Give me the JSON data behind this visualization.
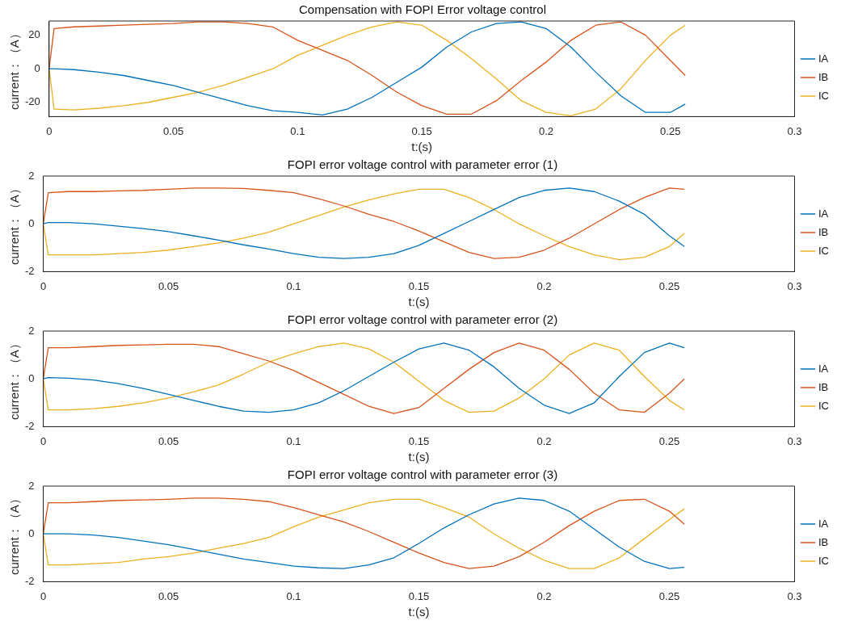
{
  "chart_data": [
    {
      "type": "line",
      "title": "Compensation with FOPI Error voltage control",
      "xlabel": "t:(s)",
      "ylabel": "current：（A）",
      "xlim": [
        0,
        0.3
      ],
      "xticks": [
        0,
        0.05,
        0.1,
        0.15,
        0.2,
        0.25,
        0.3
      ],
      "ylim": [
        -28.5,
        28.5
      ],
      "yticks": [
        -20,
        0,
        20
      ],
      "legend": "right",
      "grid": false,
      "marker": "none",
      "x": [
        0,
        0.002,
        0.01,
        0.02,
        0.03,
        0.04,
        0.05,
        0.06,
        0.07,
        0.08,
        0.09,
        0.1,
        0.11,
        0.12,
        0.13,
        0.14,
        0.15,
        0.16,
        0.17,
        0.18,
        0.19,
        0.2,
        0.21,
        0.22,
        0.23,
        0.24,
        0.25,
        0.256
      ],
      "series": [
        {
          "name": "IA",
          "color": "#0072bd",
          "values": [
            0,
            0,
            -0.5,
            -2,
            -4,
            -7,
            -10,
            -14,
            -18,
            -22,
            -25,
            -26,
            -27.5,
            -24,
            -17,
            -8,
            1,
            13,
            22,
            27,
            28,
            24,
            13,
            -2,
            -16,
            -26,
            -26,
            -21
          ]
        },
        {
          "name": "IB",
          "color": "#d95319",
          "values": [
            0,
            24,
            25,
            25.5,
            26,
            26.5,
            27,
            28,
            28,
            27,
            25,
            17,
            11,
            5,
            -4,
            -14,
            -22,
            -27,
            -27,
            -19,
            -7,
            4,
            17,
            26,
            28,
            20,
            5,
            -4
          ]
        },
        {
          "name": "IC",
          "color": "#edb120",
          "values": [
            0,
            -24,
            -24.5,
            -23.5,
            -22,
            -20,
            -17,
            -14,
            -10,
            -5,
            0,
            8,
            14,
            20,
            25,
            28,
            26,
            17,
            6,
            -6,
            -19,
            -26,
            -28,
            -24,
            -12,
            5,
            20,
            26
          ]
        }
      ]
    },
    {
      "type": "line",
      "title": "FOPI error voltage control with parameter error (1)",
      "xlabel": "t:(s)",
      "ylabel": "current：（A）",
      "xlim": [
        0,
        0.3
      ],
      "xticks": [
        0,
        0.05,
        0.1,
        0.15,
        0.2,
        0.25,
        0.3
      ],
      "ylim": [
        -2,
        2
      ],
      "yticks": [
        -2,
        0,
        2
      ],
      "legend": "right",
      "grid": false,
      "marker": "none",
      "x": [
        0,
        0.002,
        0.01,
        0.02,
        0.03,
        0.04,
        0.05,
        0.06,
        0.07,
        0.08,
        0.09,
        0.1,
        0.11,
        0.12,
        0.13,
        0.14,
        0.15,
        0.16,
        0.17,
        0.18,
        0.19,
        0.2,
        0.21,
        0.22,
        0.23,
        0.24,
        0.25,
        0.256
      ],
      "series": [
        {
          "name": "IA",
          "color": "#0072bd",
          "values": [
            0,
            0.05,
            0.05,
            0,
            -0.1,
            -0.2,
            -0.33,
            -0.5,
            -0.68,
            -0.88,
            -1.05,
            -1.25,
            -1.4,
            -1.45,
            -1.4,
            -1.25,
            -0.9,
            -0.4,
            0.1,
            0.6,
            1.1,
            1.4,
            1.5,
            1.35,
            0.95,
            0.4,
            -0.5,
            -0.95
          ]
        },
        {
          "name": "IB",
          "color": "#d95319",
          "values": [
            0,
            1.3,
            1.35,
            1.35,
            1.38,
            1.4,
            1.45,
            1.5,
            1.5,
            1.48,
            1.4,
            1.3,
            1.05,
            0.75,
            0.4,
            0.1,
            -0.3,
            -0.75,
            -1.2,
            -1.45,
            -1.4,
            -1.1,
            -0.6,
            0,
            0.6,
            1.1,
            1.5,
            1.45
          ]
        },
        {
          "name": "IC",
          "color": "#edb120",
          "values": [
            0,
            -1.3,
            -1.3,
            -1.3,
            -1.25,
            -1.2,
            -1.1,
            -0.95,
            -0.8,
            -0.6,
            -0.35,
            0,
            0.35,
            0.7,
            1,
            1.25,
            1.45,
            1.45,
            1.1,
            0.6,
            0,
            -0.5,
            -0.95,
            -1.3,
            -1.5,
            -1.4,
            -0.95,
            -0.4
          ]
        }
      ]
    },
    {
      "type": "line",
      "title": "FOPI error voltage control with parameter error (2)",
      "xlabel": "t:(s)",
      "ylabel": "current：（A）",
      "xlim": [
        0,
        0.3
      ],
      "xticks": [
        0,
        0.05,
        0.1,
        0.15,
        0.2,
        0.25,
        0.3
      ],
      "ylim": [
        -2,
        2
      ],
      "yticks": [
        -2,
        0,
        2
      ],
      "legend": "right",
      "grid": false,
      "marker": "none",
      "x": [
        0,
        0.002,
        0.01,
        0.02,
        0.03,
        0.04,
        0.05,
        0.06,
        0.07,
        0.08,
        0.09,
        0.1,
        0.11,
        0.12,
        0.13,
        0.14,
        0.15,
        0.16,
        0.17,
        0.18,
        0.19,
        0.2,
        0.21,
        0.22,
        0.23,
        0.24,
        0.25,
        0.256
      ],
      "series": [
        {
          "name": "IA",
          "color": "#0072bd",
          "values": [
            0,
            0.05,
            0.03,
            -0.05,
            -0.2,
            -0.4,
            -0.65,
            -0.9,
            -1.15,
            -1.35,
            -1.4,
            -1.3,
            -1,
            -0.5,
            0.1,
            0.7,
            1.25,
            1.5,
            1.2,
            0.5,
            -0.4,
            -1.1,
            -1.45,
            -1,
            0.1,
            1.1,
            1.5,
            1.3
          ]
        },
        {
          "name": "IB",
          "color": "#d95319",
          "values": [
            0,
            1.3,
            1.3,
            1.35,
            1.4,
            1.42,
            1.45,
            1.45,
            1.35,
            1.05,
            0.75,
            0.35,
            -0.15,
            -0.65,
            -1.15,
            -1.45,
            -1.2,
            -0.4,
            0.4,
            1.1,
            1.5,
            1.2,
            0.4,
            -0.6,
            -1.3,
            -1.4,
            -0.6,
            0
          ]
        },
        {
          "name": "IC",
          "color": "#edb120",
          "values": [
            0,
            -1.3,
            -1.3,
            -1.25,
            -1.15,
            -1,
            -0.8,
            -0.55,
            -0.25,
            0.2,
            0.7,
            1.05,
            1.35,
            1.5,
            1.25,
            0.7,
            -0.1,
            -0.9,
            -1.4,
            -1.35,
            -0.8,
            0,
            1,
            1.5,
            1.2,
            0.1,
            -0.9,
            -1.3
          ]
        }
      ]
    },
    {
      "type": "line",
      "title": "FOPI error voltage control with parameter error (3)",
      "xlabel": "t:(s)",
      "ylabel": "current：（A）",
      "xlim": [
        0,
        0.3
      ],
      "xticks": [
        0,
        0.05,
        0.1,
        0.15,
        0.2,
        0.25,
        0.3
      ],
      "ylim": [
        -2,
        2
      ],
      "yticks": [
        -2,
        0,
        2
      ],
      "legend": "right",
      "grid": false,
      "marker": "none",
      "x": [
        0,
        0.002,
        0.01,
        0.02,
        0.03,
        0.04,
        0.05,
        0.06,
        0.07,
        0.08,
        0.09,
        0.1,
        0.11,
        0.12,
        0.13,
        0.14,
        0.15,
        0.16,
        0.17,
        0.18,
        0.19,
        0.2,
        0.21,
        0.22,
        0.23,
        0.24,
        0.25,
        0.256
      ],
      "series": [
        {
          "name": "IA",
          "color": "#0072bd",
          "values": [
            0,
            0,
            0,
            -0.05,
            -0.15,
            -0.3,
            -0.45,
            -0.65,
            -0.85,
            -1.05,
            -1.2,
            -1.35,
            -1.42,
            -1.45,
            -1.3,
            -1,
            -0.4,
            0.25,
            0.8,
            1.25,
            1.5,
            1.4,
            0.95,
            0.2,
            -0.55,
            -1.15,
            -1.45,
            -1.4
          ]
        },
        {
          "name": "IB",
          "color": "#d95319",
          "values": [
            0,
            1.3,
            1.3,
            1.35,
            1.4,
            1.42,
            1.45,
            1.5,
            1.5,
            1.45,
            1.35,
            1.1,
            0.8,
            0.5,
            0.1,
            -0.35,
            -0.8,
            -1.2,
            -1.45,
            -1.35,
            -0.95,
            -0.35,
            0.35,
            0.95,
            1.4,
            1.45,
            0.95,
            0.4
          ]
        },
        {
          "name": "IC",
          "color": "#edb120",
          "values": [
            0,
            -1.3,
            -1.3,
            -1.25,
            -1.2,
            -1.05,
            -0.95,
            -0.8,
            -0.6,
            -0.4,
            -0.15,
            0.3,
            0.7,
            1,
            1.3,
            1.45,
            1.45,
            1.1,
            0.7,
            0,
            -0.6,
            -1.1,
            -1.45,
            -1.45,
            -1,
            -0.2,
            0.6,
            1.05
          ]
        }
      ]
    }
  ]
}
